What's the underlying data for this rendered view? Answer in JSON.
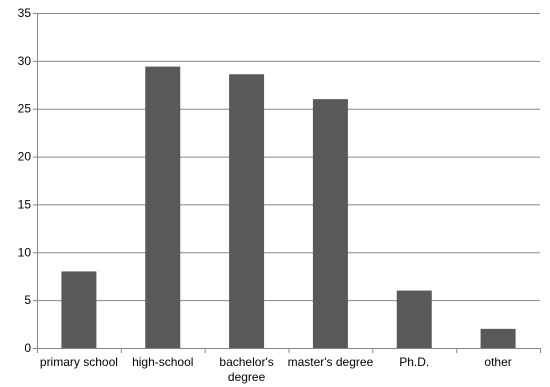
{
  "chart_data": {
    "type": "bar",
    "categories": [
      "primary school",
      "high-school",
      "bachelor's degree",
      "master's degree",
      "Ph.D.",
      "other"
    ],
    "category_label_lines": [
      [
        "primary school"
      ],
      [
        "high-school"
      ],
      [
        "bachelor's",
        "degree"
      ],
      [
        "master's degree"
      ],
      [
        "Ph.D."
      ],
      [
        "other"
      ]
    ],
    "values": [
      8,
      29.4,
      28.6,
      26,
      6,
      2
    ],
    "ylim": [
      0,
      35
    ],
    "yticks": [
      0,
      5,
      10,
      15,
      20,
      25,
      30,
      35
    ],
    "ytick_labels": [
      "0",
      "5",
      "10",
      "15",
      "20",
      "25",
      "30",
      "35"
    ],
    "title": "",
    "xlabel": "",
    "ylabel": "",
    "grid": true,
    "legend": "none",
    "colors": {
      "bar": "#595959",
      "grid": "#868686",
      "axis": "#868686"
    }
  }
}
